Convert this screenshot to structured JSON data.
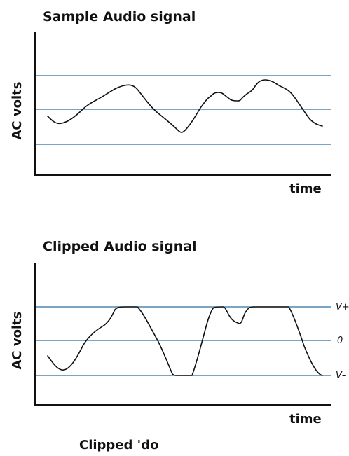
{
  "colors": {
    "grid": "#2e6fa0",
    "signal": "#111111",
    "axis": "#111111"
  },
  "panels": {
    "sample": {
      "title": "Sample Audio signal",
      "ylabel": "AC volts",
      "xlabel": "time"
    },
    "clipped": {
      "title": "Clipped Audio signal",
      "ylabel": "AC volts",
      "xlabel": "time",
      "levels": [
        "V+",
        "0",
        "V–"
      ]
    }
  },
  "caption": "Clipped 'do"
}
